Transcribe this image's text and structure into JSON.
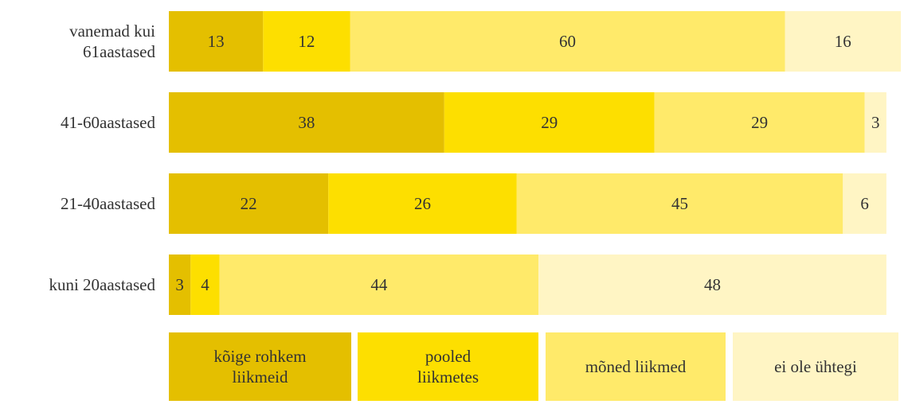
{
  "chart_data": {
    "type": "stacked-bar-horizontal",
    "categories": [
      "vanemad kui 61aastased",
      "41-60aastased",
      "21-40aastased",
      "kuni 20aastased"
    ],
    "series": [
      {
        "name": "kõige rohkem liikmeid",
        "color": "#e4bf00",
        "values": [
          13,
          38,
          22,
          3
        ]
      },
      {
        "name": "pooled liikmetes",
        "color": "#fddf00",
        "values": [
          12,
          29,
          26,
          4
        ]
      },
      {
        "name": "mõned liikmed",
        "color": "#ffea6a",
        "values": [
          60,
          29,
          45,
          44
        ]
      },
      {
        "name": "ei ole ühtegi",
        "color": "#fff5c4",
        "values": [
          16,
          3,
          6,
          48
        ]
      }
    ]
  }
}
